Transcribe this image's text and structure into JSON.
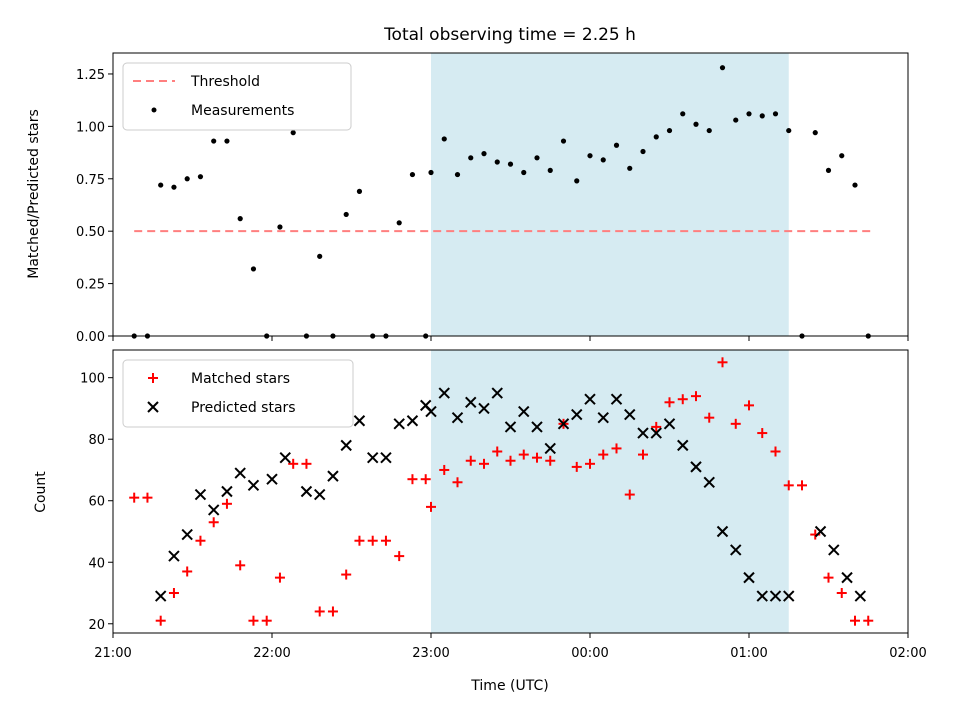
{
  "figure": {
    "title": "Total observing time = 2.25 h",
    "xlabel": "Time (UTC)",
    "x_tick_labels": [
      "21:00",
      "22:00",
      "23:00",
      "00:00",
      "01:00",
      "02:00"
    ],
    "highlight_color": "#add8e6"
  },
  "chart_data": [
    {
      "type": "scatter",
      "ylabel": "Matched/Predicted stars",
      "xlim": [
        "21:00",
        "02:00"
      ],
      "ylim": [
        0,
        1.35
      ],
      "y_ticks": [
        0.0,
        0.25,
        0.5,
        0.75,
        1.0,
        1.25
      ],
      "y_tick_labels": [
        "0.00",
        "0.25",
        "0.50",
        "0.75",
        "1.00",
        "1.25"
      ],
      "highlight_span": [
        "23:00",
        "01:15"
      ],
      "legend": {
        "position": "upper-left",
        "entries": [
          "Threshold",
          "Measurements"
        ]
      },
      "series": [
        {
          "name": "Threshold",
          "kind": "dashed-line",
          "color": "#ff7f7f",
          "x": [
            "21:08",
            "23:00",
            "01:25",
            "01:47"
          ],
          "y": [
            0.5,
            0.5,
            0.5,
            0.5
          ]
        },
        {
          "name": "Measurements",
          "kind": "dot",
          "color": "#000000",
          "x": [
            "21:08",
            "21:13",
            "21:18",
            "21:23",
            "21:28",
            "21:33",
            "21:38",
            "21:43",
            "21:48",
            "21:53",
            "21:58",
            "22:03",
            "22:08",
            "22:13",
            "22:18",
            "22:23",
            "22:28",
            "22:33",
            "22:38",
            "22:43",
            "22:48",
            "22:53",
            "22:58",
            "23:00",
            "23:05",
            "23:10",
            "23:15",
            "23:20",
            "23:25",
            "23:30",
            "23:35",
            "23:40",
            "23:45",
            "23:50",
            "23:55",
            "00:00",
            "00:05",
            "00:10",
            "00:15",
            "00:20",
            "00:25",
            "00:30",
            "00:35",
            "00:40",
            "00:45",
            "00:50",
            "00:55",
            "01:00",
            "01:05",
            "01:10",
            "01:15",
            "01:20",
            "01:25",
            "01:30",
            "01:35",
            "01:40",
            "01:45"
          ],
          "y": [
            0.0,
            0.0,
            0.72,
            0.71,
            0.75,
            0.76,
            0.93,
            0.93,
            0.56,
            0.32,
            0.0,
            0.52,
            0.97,
            0.0,
            0.38,
            0.0,
            0.58,
            0.69,
            0.0,
            0.0,
            0.54,
            0.77,
            0.0,
            0.78,
            0.94,
            0.77,
            0.85,
            0.87,
            0.83,
            0.82,
            0.78,
            0.85,
            0.79,
            0.93,
            0.74,
            0.86,
            0.84,
            0.91,
            0.8,
            0.88,
            0.95,
            0.98,
            1.06,
            1.01,
            0.98,
            1.28,
            1.03,
            1.06,
            1.05,
            1.06,
            0.98,
            0.0,
            0.97,
            0.79,
            0.86,
            0.72,
            0.0
          ]
        }
      ]
    },
    {
      "type": "scatter",
      "ylabel": "Count",
      "xlim": [
        "21:00",
        "02:00"
      ],
      "ylim": [
        17,
        109
      ],
      "y_ticks": [
        20,
        40,
        60,
        80,
        100
      ],
      "y_tick_labels": [
        "20",
        "40",
        "60",
        "80",
        "100"
      ],
      "highlight_span": [
        "23:00",
        "01:15"
      ],
      "legend": {
        "position": "upper-left",
        "entries": [
          "Matched stars",
          "Predicted stars"
        ]
      },
      "series": [
        {
          "name": "Matched stars",
          "kind": "plus",
          "color": "#ff0000",
          "x": [
            "21:08",
            "21:13",
            "21:18",
            "21:23",
            "21:28",
            "21:33",
            "21:38",
            "21:43",
            "21:48",
            "21:53",
            "21:58",
            "22:03",
            "22:08",
            "22:13",
            "22:18",
            "22:23",
            "22:28",
            "22:33",
            "22:38",
            "22:43",
            "22:48",
            "22:53",
            "22:58",
            "23:00",
            "23:05",
            "23:10",
            "23:15",
            "23:20",
            "23:25",
            "23:30",
            "23:35",
            "23:40",
            "23:45",
            "23:50",
            "23:55",
            "00:00",
            "00:05",
            "00:10",
            "00:15",
            "00:20",
            "00:25",
            "00:30",
            "00:35",
            "00:40",
            "00:45",
            "00:50",
            "00:55",
            "01:00",
            "01:05",
            "01:10",
            "01:15",
            "01:20",
            "01:25",
            "01:30",
            "01:35",
            "01:40",
            "01:45"
          ],
          "y": [
            61,
            61,
            21,
            30,
            37,
            47,
            53,
            59,
            39,
            21,
            21,
            35,
            72,
            72,
            24,
            24,
            36,
            47,
            47,
            47,
            42,
            67,
            67,
            58,
            70,
            66,
            73,
            72,
            76,
            73,
            75,
            74,
            73,
            85,
            71,
            72,
            75,
            77,
            62,
            75,
            84,
            92,
            93,
            94,
            87,
            105,
            85,
            91,
            82,
            76,
            65,
            65,
            49,
            35,
            30,
            21,
            21
          ]
        },
        {
          "name": "Predicted stars",
          "kind": "cross",
          "color": "#000000",
          "x": [
            "21:18",
            "21:23",
            "21:28",
            "21:33",
            "21:38",
            "21:43",
            "21:48",
            "21:53",
            "22:00",
            "22:05",
            "22:13",
            "22:18",
            "22:23",
            "22:28",
            "22:33",
            "22:38",
            "22:43",
            "22:48",
            "22:53",
            "22:58",
            "23:00",
            "23:05",
            "23:10",
            "23:15",
            "23:20",
            "23:25",
            "23:30",
            "23:35",
            "23:40",
            "23:45",
            "23:50",
            "23:55",
            "00:00",
            "00:05",
            "00:10",
            "00:15",
            "00:20",
            "00:25",
            "00:30",
            "00:35",
            "00:40",
            "00:45",
            "00:50",
            "00:55",
            "01:00",
            "01:05",
            "01:10",
            "01:15",
            "01:27",
            "01:32",
            "01:37",
            "01:42"
          ],
          "y": [
            29,
            42,
            49,
            62,
            57,
            63,
            69,
            65,
            67,
            74,
            63,
            62,
            68,
            78,
            86,
            74,
            74,
            85,
            86,
            91,
            89,
            95,
            87,
            92,
            90,
            95,
            84,
            89,
            84,
            77,
            85,
            88,
            93,
            87,
            93,
            88,
            82,
            82,
            85,
            78,
            71,
            66,
            50,
            44,
            35,
            29,
            29,
            29,
            50,
            44,
            35,
            29
          ]
        }
      ]
    }
  ]
}
